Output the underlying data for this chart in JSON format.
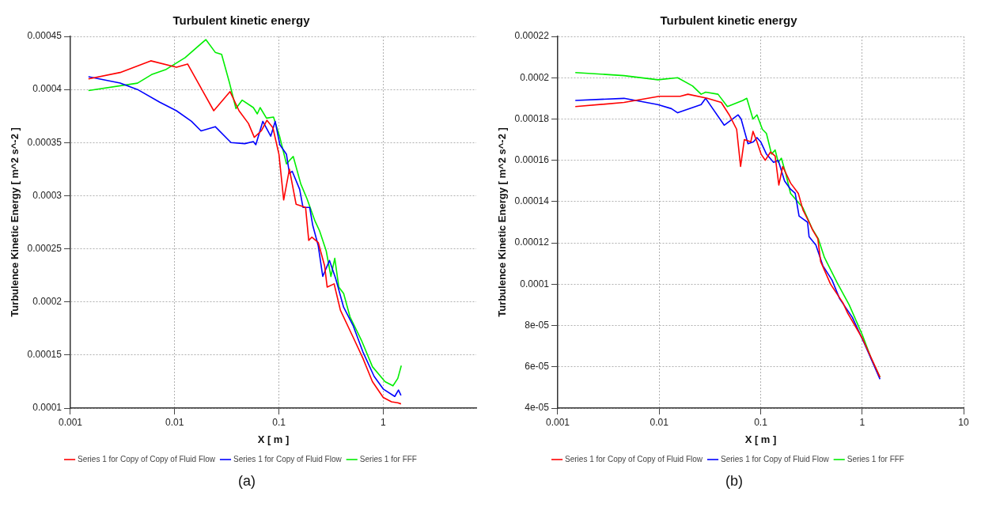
{
  "chart_data": [
    {
      "type": "line",
      "title": "Turbulent kinetic energy",
      "xlabel": "X [ m ]",
      "ylabel": "Turbulence Kinetic Energy [ m^2 s^-2 ]",
      "log": "x",
      "grid": true,
      "legend": "bottom",
      "marker": "none",
      "line_style": "solid",
      "xlim": [
        0.001,
        7.8
      ],
      "xticks": [
        0.001,
        0.01,
        0.1,
        1
      ],
      "ylim": [
        0.0001,
        0.00045
      ],
      "yticks": [
        0.0001,
        0.00015,
        0.0002,
        0.00025,
        0.0003,
        0.00035,
        0.0004,
        0.00045
      ],
      "annotations": [
        "(a)"
      ],
      "series": [
        {
          "name": "Series 1 for Copy of Copy of Fluid Flow",
          "color": "#ff0000",
          "x": [
            0.00149,
            0.003,
            0.0059,
            0.0104,
            0.0133,
            0.0237,
            0.034,
            0.0414,
            0.051,
            0.058,
            0.0676,
            0.0766,
            0.0875,
            0.1,
            0.111,
            0.126,
            0.146,
            0.18,
            0.193,
            0.207,
            0.238,
            0.274,
            0.29,
            0.338,
            0.389,
            0.513,
            0.638,
            0.788,
            1.0,
            1.2,
            1.38,
            1.48
          ],
          "values": [
            0.00041,
            0.000416,
            0.000427,
            0.000421,
            0.000424,
            0.00038,
            0.000398,
            0.00038,
            0.000368,
            0.000355,
            0.000361,
            0.000371,
            0.000364,
            0.000339,
            0.000296,
            0.000325,
            0.000292,
            0.000289,
            0.000258,
            0.000261,
            0.000256,
            0.000234,
            0.000214,
            0.000217,
            0.000192,
            0.000167,
            0.000147,
            0.000125,
            0.00011,
            0.000106,
            0.000105,
            0.000104
          ]
        },
        {
          "name": "Series 1 for Copy of Fluid Flow",
          "color": "#0000ff",
          "x": [
            0.00149,
            0.003,
            0.0044,
            0.0072,
            0.0104,
            0.0145,
            0.0179,
            0.0245,
            0.0347,
            0.047,
            0.0568,
            0.06,
            0.07,
            0.0834,
            0.092,
            0.102,
            0.118,
            0.126,
            0.134,
            0.158,
            0.17,
            0.197,
            0.211,
            0.238,
            0.263,
            0.305,
            0.35,
            0.417,
            0.513,
            0.638,
            0.817,
            1.0,
            1.29,
            1.4,
            1.48
          ],
          "values": [
            0.000412,
            0.000406,
            0.0004,
            0.000388,
            0.00038,
            0.00037,
            0.000361,
            0.000365,
            0.00035,
            0.000349,
            0.000351,
            0.000348,
            0.00037,
            0.000356,
            0.00037,
            0.000348,
            0.000339,
            0.000321,
            0.000323,
            0.000306,
            0.000289,
            0.000289,
            0.000272,
            0.000253,
            0.000224,
            0.000239,
            0.000222,
            0.000195,
            0.000178,
            0.000153,
            0.00013,
            0.000118,
            0.000111,
            0.000117,
            0.000112
          ]
        },
        {
          "name": "Series 1 for FFF",
          "color": "#00ee00",
          "x": [
            0.00149,
            0.0044,
            0.006,
            0.0083,
            0.0126,
            0.0199,
            0.0245,
            0.0282,
            0.0336,
            0.0387,
            0.0444,
            0.0568,
            0.062,
            0.066,
            0.0759,
            0.0887,
            0.102,
            0.118,
            0.137,
            0.162,
            0.186,
            0.222,
            0.245,
            0.284,
            0.315,
            0.343,
            0.375,
            0.417,
            0.48,
            0.617,
            0.788,
            1.04,
            1.24,
            1.38,
            1.49
          ],
          "values": [
            0.000399,
            0.000406,
            0.000414,
            0.000419,
            0.00043,
            0.000447,
            0.000435,
            0.000433,
            0.000406,
            0.000382,
            0.00039,
            0.000383,
            0.000377,
            0.000383,
            0.000373,
            0.000374,
            0.000355,
            0.00033,
            0.000337,
            0.000311,
            0.000297,
            0.000276,
            0.000267,
            0.000248,
            0.000224,
            0.000241,
            0.000214,
            0.000208,
            0.000186,
            0.000164,
            0.000139,
            0.000125,
            0.000121,
            0.000128,
            0.00014
          ]
        }
      ]
    },
    {
      "type": "line",
      "title": "Turbulent kinetic energy",
      "xlabel": "X [ m ]",
      "ylabel": "Turbulence Kinetic Energy [ m^2 s^-2 ]",
      "log": "x",
      "grid": true,
      "legend": "bottom",
      "marker": "none",
      "line_style": "solid",
      "xlim": [
        0.001,
        10
      ],
      "xticks": [
        0.001,
        0.01,
        0.1,
        1,
        10
      ],
      "ylim": [
        4e-05,
        0.00022
      ],
      "yticks": [
        {
          "value": 4e-05,
          "label": "4e-05"
        },
        {
          "value": 6e-05,
          "label": "6e-05"
        },
        {
          "value": 8e-05,
          "label": "8e-05"
        },
        0.0001,
        0.00012,
        0.00014,
        0.00016,
        0.00018,
        0.0002,
        0.00022
      ],
      "annotations": [
        "(b)"
      ],
      "series": [
        {
          "name": "Series 1 for Copy of Copy of Fluid Flow",
          "color": "#ff0000",
          "x": [
            0.00149,
            0.0045,
            0.01,
            0.0161,
            0.0192,
            0.0298,
            0.0409,
            0.049,
            0.058,
            0.0634,
            0.069,
            0.08,
            0.084,
            0.092,
            0.101,
            0.111,
            0.125,
            0.139,
            0.151,
            0.165,
            0.197,
            0.235,
            0.261,
            0.3,
            0.327,
            0.366,
            0.39,
            0.489,
            0.647,
            0.72,
            1.0,
            1.5
          ],
          "values": [
            0.000186,
            0.000188,
            0.000191,
            0.000191,
            0.000192,
            0.00019,
            0.000188,
            0.000182,
            0.000175,
            0.000157,
            0.00017,
            0.000169,
            0.000174,
            0.000169,
            0.000163,
            0.00016,
            0.000164,
            0.000162,
            0.000148,
            0.000157,
            0.000149,
            0.000144,
            0.000136,
            0.00013,
            0.000126,
            0.000122,
            0.000111,
            0.0001,
            9.1e-05,
            8.6e-05,
            7.4e-05,
            5.5e-05
          ]
        },
        {
          "name": "Series 1 for Copy of Fluid Flow",
          "color": "#0000ff",
          "x": [
            0.00149,
            0.0045,
            0.0097,
            0.0132,
            0.0152,
            0.0259,
            0.0287,
            0.0437,
            0.06,
            0.0642,
            0.075,
            0.085,
            0.092,
            0.1,
            0.114,
            0.134,
            0.149,
            0.172,
            0.197,
            0.219,
            0.239,
            0.29,
            0.3,
            0.35,
            0.41,
            0.505,
            0.6,
            0.8,
            1.06,
            1.5
          ],
          "values": [
            0.000189,
            0.00019,
            0.000187,
            0.000185,
            0.000183,
            0.000187,
            0.00019,
            0.000177,
            0.000182,
            0.00018,
            0.000168,
            0.000169,
            0.000171,
            0.000169,
            0.000163,
            0.000159,
            0.00016,
            0.00015,
            0.000146,
            0.000144,
            0.000133,
            0.00013,
            0.000123,
            0.000119,
            0.000109,
            0.000102,
            9.3e-05,
            8.4e-05,
            7.1e-05,
            5.4e-05
          ]
        },
        {
          "name": "Series 1 for FFF",
          "color": "#00ee00",
          "x": [
            0.00149,
            0.0045,
            0.0097,
            0.0152,
            0.0213,
            0.0259,
            0.0287,
            0.038,
            0.047,
            0.0667,
            0.073,
            0.084,
            0.092,
            0.104,
            0.114,
            0.128,
            0.139,
            0.149,
            0.16,
            0.178,
            0.197,
            0.261,
            0.321,
            0.37,
            0.425,
            0.563,
            0.745,
            1.0,
            1.23,
            1.5
          ],
          "values": [
            0.0002025,
            0.000201,
            0.000199,
            0.0002,
            0.000196,
            0.000192,
            0.000193,
            0.000192,
            0.000186,
            0.000189,
            0.00019,
            0.00018,
            0.000182,
            0.000175,
            0.000173,
            0.000163,
            0.000165,
            0.000159,
            0.000161,
            0.000153,
            0.000144,
            0.000137,
            0.000127,
            0.000122,
            0.000113,
            0.000101,
            9e-05,
            7.57e-05,
            6.4e-05,
            5.5e-05
          ]
        }
      ]
    }
  ]
}
